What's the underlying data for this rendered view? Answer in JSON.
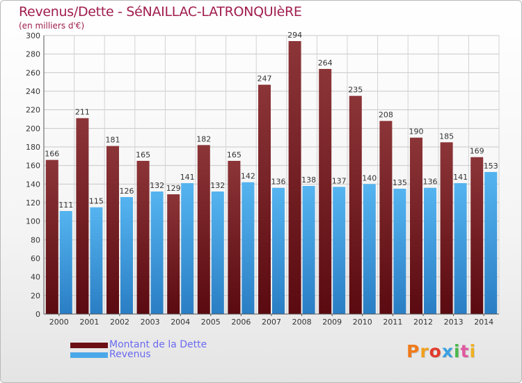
{
  "title": "Revenus/Dette - SéNAILLAC-LATRONQUIèRE",
  "subtitle": "(en milliers d'€)",
  "logo": "Proxiti",
  "colors": {
    "dette": "#7a1e22",
    "dette_light": "#8c3538",
    "revenus": "#4aa8e8",
    "revenus_dark": "#2f86c8",
    "title": "#a01d4d",
    "legend_text": "#6a6af0"
  },
  "legend": [
    {
      "label": "Montant de la Dette",
      "color": "#7a1e22"
    },
    {
      "label": "Revenus",
      "color": "#4aa8e8"
    }
  ],
  "chart_data": {
    "type": "bar",
    "title": "Revenus/Dette - SéNAILLAC-LATRONQUIèRE",
    "ylabel": "(en milliers d'€)",
    "categories": [
      "2000",
      "2001",
      "2002",
      "2003",
      "2004",
      "2005",
      "2006",
      "2007",
      "2008",
      "2009",
      "2010",
      "2011",
      "2012",
      "2013",
      "2014"
    ],
    "series": [
      {
        "name": "Montant de la Dette",
        "values": [
          166,
          211,
          181,
          165,
          129,
          182,
          165,
          247,
          294,
          264,
          235,
          208,
          190,
          185,
          169
        ]
      },
      {
        "name": "Revenus",
        "values": [
          111,
          115,
          126,
          132,
          141,
          132,
          142,
          136,
          138,
          137,
          140,
          135,
          136,
          141,
          153
        ]
      }
    ],
    "ylim": [
      0,
      300
    ],
    "yticks": [
      0,
      20,
      40,
      60,
      80,
      100,
      120,
      140,
      160,
      180,
      200,
      220,
      240,
      260,
      280,
      300
    ],
    "grid": true,
    "legend_position": "bottom-left"
  }
}
